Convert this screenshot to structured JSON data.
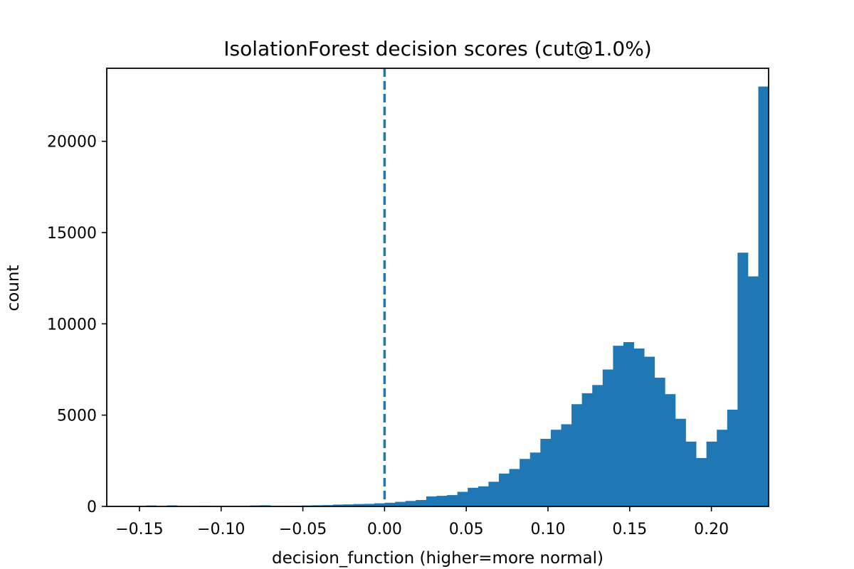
{
  "chart_data": {
    "type": "bar",
    "title": "IsolationForest decision scores (cut@1.0%)",
    "xlabel": "decision_function (higher=more normal)",
    "ylabel": "count",
    "xlim": [
      -0.17,
      0.235
    ],
    "ylim": [
      0,
      24000
    ],
    "xticks": [
      -0.15,
      -0.1,
      -0.05,
      0.0,
      0.05,
      0.1,
      0.15,
      0.2
    ],
    "xtick_labels": [
      "−0.15",
      "−0.10",
      "−0.05",
      "0.00",
      "0.05",
      "0.10",
      "0.15",
      "0.20"
    ],
    "yticks": [
      0,
      5000,
      10000,
      15000,
      20000
    ],
    "ytick_labels": [
      "0",
      "5000",
      "10000",
      "15000",
      "20000"
    ],
    "bar_color": "#1f77b4",
    "cut_line": {
      "x": 0.0,
      "color": "#1f77b4",
      "style": "dashed"
    },
    "bins": {
      "start": -0.165,
      "width": 0.00635,
      "counts": [
        5,
        10,
        15,
        50,
        15,
        55,
        10,
        10,
        30,
        15,
        5,
        10,
        20,
        50,
        60,
        25,
        35,
        40,
        50,
        60,
        70,
        100,
        110,
        130,
        140,
        170,
        200,
        250,
        300,
        350,
        550,
        580,
        620,
        800,
        1020,
        1100,
        1350,
        1800,
        2050,
        2600,
        2950,
        3700,
        4200,
        4500,
        5600,
        6200,
        6650,
        7500,
        8800,
        9000,
        8650,
        8200,
        7050,
        6150,
        4800,
        3550,
        2650,
        3550,
        4200,
        5300,
        13900,
        12600,
        23000
      ]
    }
  }
}
